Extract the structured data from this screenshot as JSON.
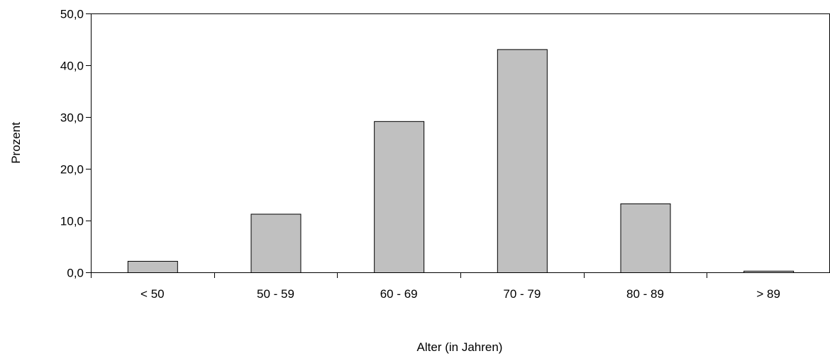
{
  "chart_data": {
    "type": "bar",
    "title": "",
    "xlabel": "Alter (in Jahren)",
    "ylabel": "Prozent",
    "categories": [
      "< 50",
      "50 - 59",
      "60 - 69",
      "70 - 79",
      "80 - 89",
      "> 89"
    ],
    "values": [
      2.2,
      11.3,
      29.2,
      43.1,
      13.3,
      0.3
    ],
    "ylim": [
      0,
      50
    ],
    "yticks": [
      0,
      10,
      20,
      30,
      40,
      50
    ],
    "ytick_labels": [
      "0,0",
      "10,0",
      "20,0",
      "30,0",
      "40,0",
      "50,0"
    ],
    "grid": false,
    "legend": "none",
    "bar_color": "#c0c0c0",
    "bar_edge_color": "#000000"
  }
}
